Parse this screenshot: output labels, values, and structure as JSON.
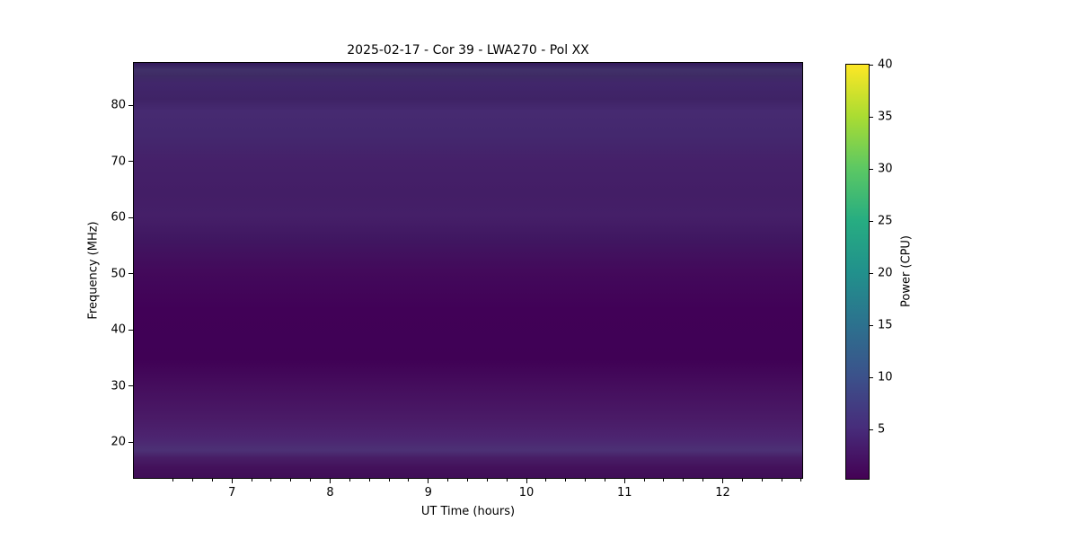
{
  "title": "2025-02-17 - Cor 39 - LWA270 - Pol XX",
  "axes": {
    "xlabel": "UT Time (hours)",
    "ylabel": "Frequency (MHz)",
    "x_range": [
      6.0,
      12.81
    ],
    "y_range": [
      13.6,
      87.52
    ],
    "x_major_ticks": [
      7,
      8,
      9,
      10,
      11,
      12
    ],
    "x_minor_step": 0.2,
    "y_major_ticks": [
      20,
      30,
      40,
      50,
      60,
      70,
      80
    ]
  },
  "colorbar": {
    "label": "Power (CPU)",
    "min": 0.3,
    "max": 40,
    "ticks": [
      5,
      10,
      15,
      20,
      25,
      30,
      35,
      40
    ],
    "colormap": "viridis",
    "gradient_stops": [
      {
        "frac": 0.0,
        "color": "#440154"
      },
      {
        "frac": 0.125,
        "color": "#472d7b"
      },
      {
        "frac": 0.25,
        "color": "#3b528b"
      },
      {
        "frac": 0.375,
        "color": "#2c728e"
      },
      {
        "frac": 0.5,
        "color": "#21918c"
      },
      {
        "frac": 0.625,
        "color": "#27ad81"
      },
      {
        "frac": 0.75,
        "color": "#5cc863"
      },
      {
        "frac": 0.875,
        "color": "#aadc32"
      },
      {
        "frac": 1.0,
        "color": "#fde725"
      }
    ]
  },
  "chart_data": {
    "type": "heatmap",
    "title": "2025-02-17 - Cor 39 - LWA270 - Pol XX",
    "xlabel": "UT Time (hours)",
    "ylabel": "Frequency (MHz)",
    "value_label": "Power (CPU)",
    "colormap": "viridis",
    "x_range_hours": [
      6.0,
      12.81
    ],
    "freq_range_mhz": [
      13.6,
      87.52
    ],
    "value_range": [
      0.3,
      40
    ],
    "time_uniform": true,
    "note": "Dynamic spectrum is nearly constant in time; power varies only with frequency (horizontal bands). Darkest band 30-44 MHz (~0.5 CPU); brighter bluish bands near 86 MHz and 17-19 MHz (~9 CPU).",
    "spectrum_bands": [
      {
        "freq_mhz": 87.5,
        "power": 4.5,
        "color": "#33195c"
      },
      {
        "freq_mhz": 86.3,
        "power": 9.0,
        "color": "#413169"
      },
      {
        "freq_mhz": 85.2,
        "power": 7.8,
        "color": "#3e2b64"
      },
      {
        "freq_mhz": 83.9,
        "power": 7.3,
        "color": "#41266b"
      },
      {
        "freq_mhz": 81.0,
        "power": 6.6,
        "color": "#3f2366"
      },
      {
        "freq_mhz": 78.9,
        "power": 7.6,
        "color": "#462a71"
      },
      {
        "freq_mhz": 74.6,
        "power": 7.2,
        "color": "#44286e"
      },
      {
        "freq_mhz": 69.8,
        "power": 6.6,
        "color": "#452069"
      },
      {
        "freq_mhz": 64.2,
        "power": 6.2,
        "color": "#431e66"
      },
      {
        "freq_mhz": 60.2,
        "power": 6.6,
        "color": "#451f68"
      },
      {
        "freq_mhz": 56.2,
        "power": 5.2,
        "color": "#401761"
      },
      {
        "freq_mhz": 50.6,
        "power": 2.0,
        "color": "#430a5b"
      },
      {
        "freq_mhz": 43.7,
        "power": 0.6,
        "color": "#410157"
      },
      {
        "freq_mhz": 34.6,
        "power": 0.5,
        "color": "#400155"
      },
      {
        "freq_mhz": 28.8,
        "power": 2.6,
        "color": "#46105f"
      },
      {
        "freq_mhz": 24.0,
        "power": 4.4,
        "color": "#4a1b67"
      },
      {
        "freq_mhz": 20.8,
        "power": 6.3,
        "color": "#4c2470"
      },
      {
        "freq_mhz": 18.5,
        "power": 8.8,
        "color": "#4c3175"
      },
      {
        "freq_mhz": 17.2,
        "power": 5.0,
        "color": "#481e66"
      },
      {
        "freq_mhz": 15.4,
        "power": 2.2,
        "color": "#43115b"
      },
      {
        "freq_mhz": 13.6,
        "power": 1.9,
        "color": "#400e57"
      }
    ]
  }
}
